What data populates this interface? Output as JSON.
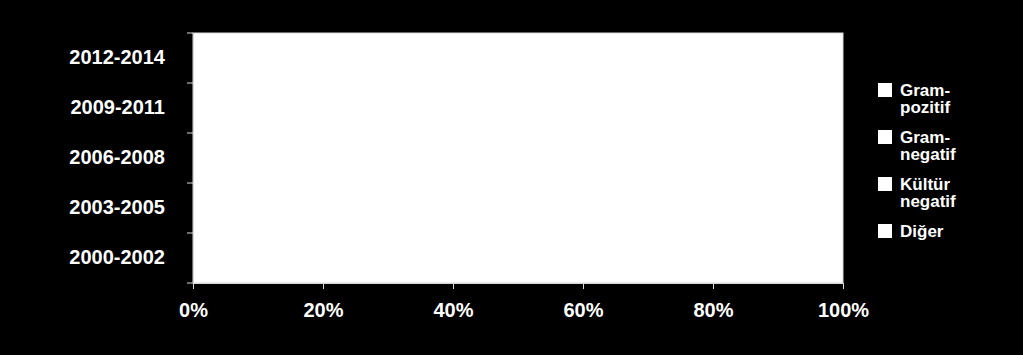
{
  "chart_data": {
    "type": "bar",
    "orientation": "horizontal",
    "stacked": true,
    "legend": "right",
    "grid": false,
    "categories": [
      "2000-2002",
      "2003-2005",
      "2006-2008",
      "2009-2011",
      "2012-2014"
    ],
    "series": [
      {
        "name": "Gram-pozitif",
        "color": "#ffffff",
        "values": [
          null,
          null,
          null,
          null,
          null
        ]
      },
      {
        "name": "Gram-negatif",
        "color": "#ffffff",
        "values": [
          null,
          null,
          null,
          null,
          null
        ]
      },
      {
        "name": "Kültür negatif",
        "color": "#ffffff",
        "values": [
          null,
          null,
          null,
          null,
          null
        ]
      },
      {
        "name": "Diğer",
        "color": "#ffffff",
        "values": [
          null,
          null,
          null,
          null,
          null
        ]
      }
    ],
    "xlim": [
      0,
      100
    ],
    "xticks": [
      {
        "value": 0,
        "label": "0%"
      },
      {
        "value": 20,
        "label": "20%"
      },
      {
        "value": 40,
        "label": "40%"
      },
      {
        "value": 60,
        "label": "60%"
      },
      {
        "value": 80,
        "label": "80%"
      },
      {
        "value": 100,
        "label": "100%"
      }
    ]
  }
}
